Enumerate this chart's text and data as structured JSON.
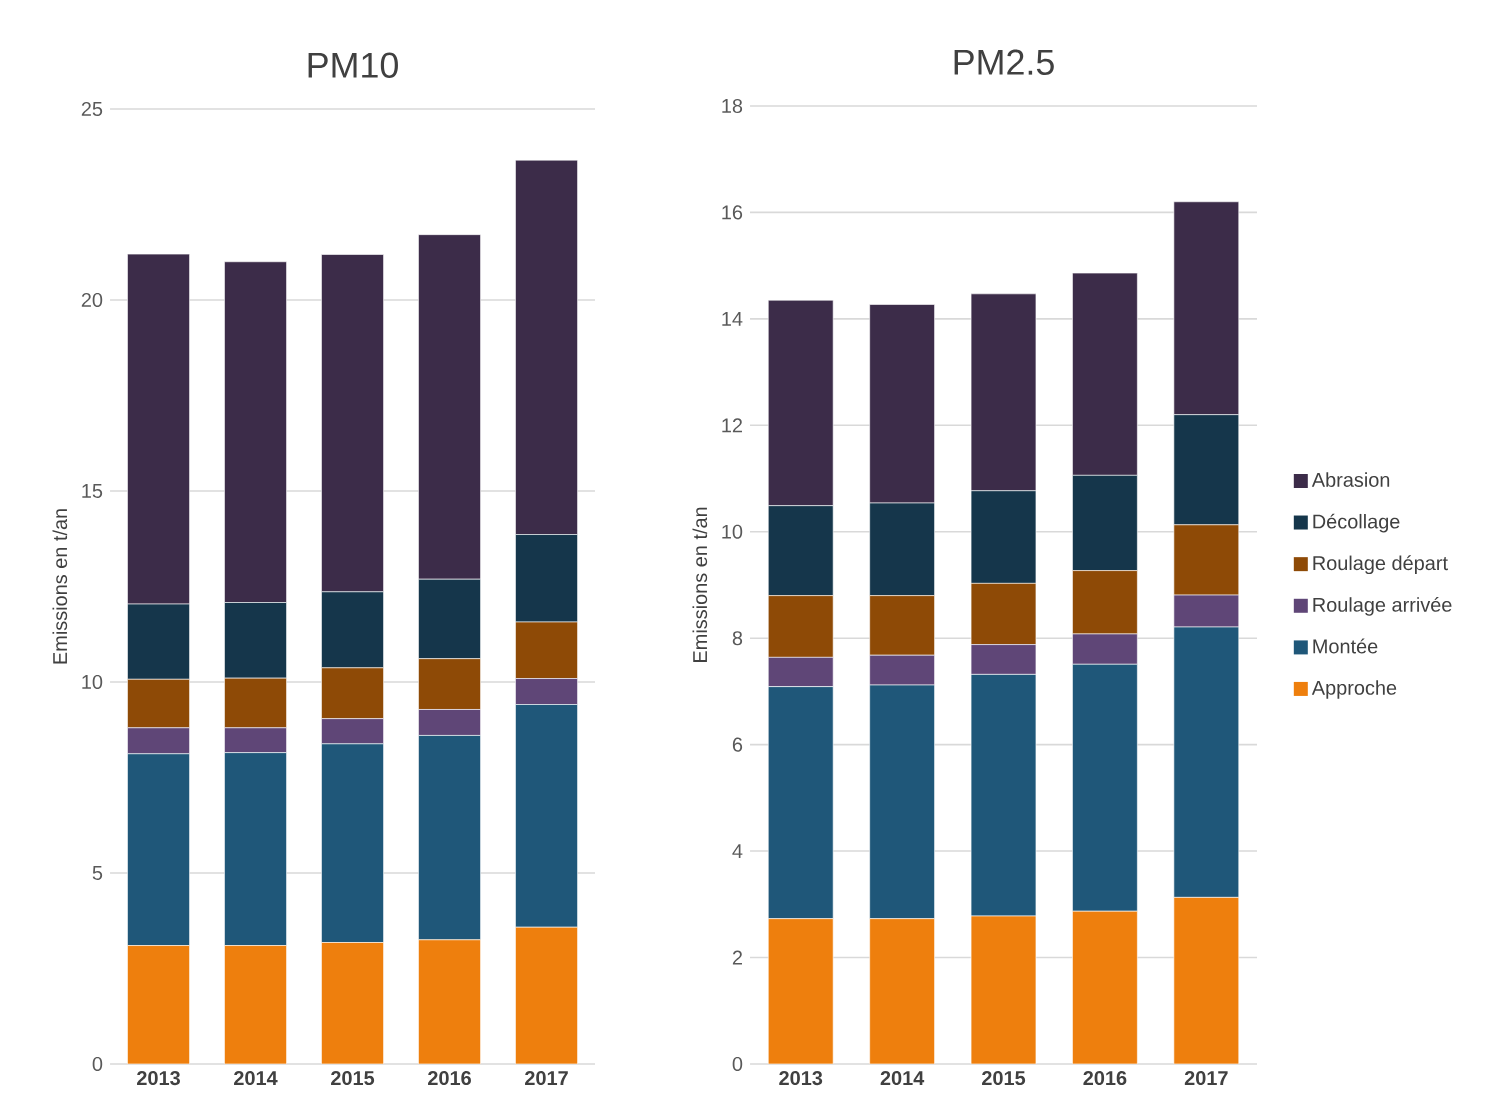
{
  "chart_data": [
    {
      "type": "bar",
      "stacked": true,
      "title": "PM10",
      "ylabel": "Emissions en t/an",
      "categories": [
        "2013",
        "2014",
        "2015",
        "2016",
        "2017"
      ],
      "ylim": [
        0,
        25
      ],
      "yticks": [
        0,
        5,
        10,
        15,
        20,
        25
      ],
      "grid": "y",
      "series": [
        {
          "color": "#ee7f0d",
          "values": [
            3.1,
            3.1,
            3.18,
            3.25,
            3.58
          ]
        },
        {
          "color": "#1f5779",
          "values": [
            5.02,
            5.05,
            5.2,
            5.35,
            5.83
          ]
        },
        {
          "color": "#5f4677",
          "values": [
            0.68,
            0.65,
            0.66,
            0.68,
            0.68
          ]
        },
        {
          "color": "#8e4a06",
          "values": [
            1.27,
            1.3,
            1.33,
            1.33,
            1.48
          ]
        },
        {
          "color": "#15364b",
          "values": [
            1.97,
            1.98,
            1.99,
            2.08,
            2.29
          ]
        },
        {
          "color": "#3c2c49",
          "values": [
            9.16,
            8.92,
            8.83,
            9.02,
            9.8
          ]
        }
      ]
    },
    {
      "type": "bar",
      "stacked": true,
      "title": "PM2.5",
      "ylabel": "Emissions en t/an",
      "categories": [
        "2013",
        "2014",
        "2015",
        "2016",
        "2017"
      ],
      "ylim": [
        0,
        18
      ],
      "yticks": [
        0,
        2,
        4,
        6,
        8,
        10,
        12,
        14,
        16,
        18
      ],
      "grid": "y",
      "legend": "right",
      "series": [
        {
          "name": "Approche",
          "color": "#ee7f0d",
          "values": [
            2.73,
            2.73,
            2.78,
            2.87,
            3.13
          ]
        },
        {
          "name": "Montée",
          "color": "#1f5779",
          "values": [
            4.36,
            4.39,
            4.54,
            4.64,
            5.08
          ]
        },
        {
          "name": "Roulage arrivée",
          "color": "#5f4677",
          "values": [
            0.55,
            0.56,
            0.56,
            0.57,
            0.6
          ]
        },
        {
          "name": "Roulage départ",
          "color": "#8e4a06",
          "values": [
            1.16,
            1.12,
            1.15,
            1.19,
            1.32
          ]
        },
        {
          "name": "Décollage",
          "color": "#15364b",
          "values": [
            1.69,
            1.74,
            1.74,
            1.79,
            2.07
          ]
        },
        {
          "name": "Abrasion",
          "color": "#3c2c49",
          "values": [
            3.86,
            3.73,
            3.7,
            3.8,
            4.0
          ]
        }
      ]
    }
  ]
}
